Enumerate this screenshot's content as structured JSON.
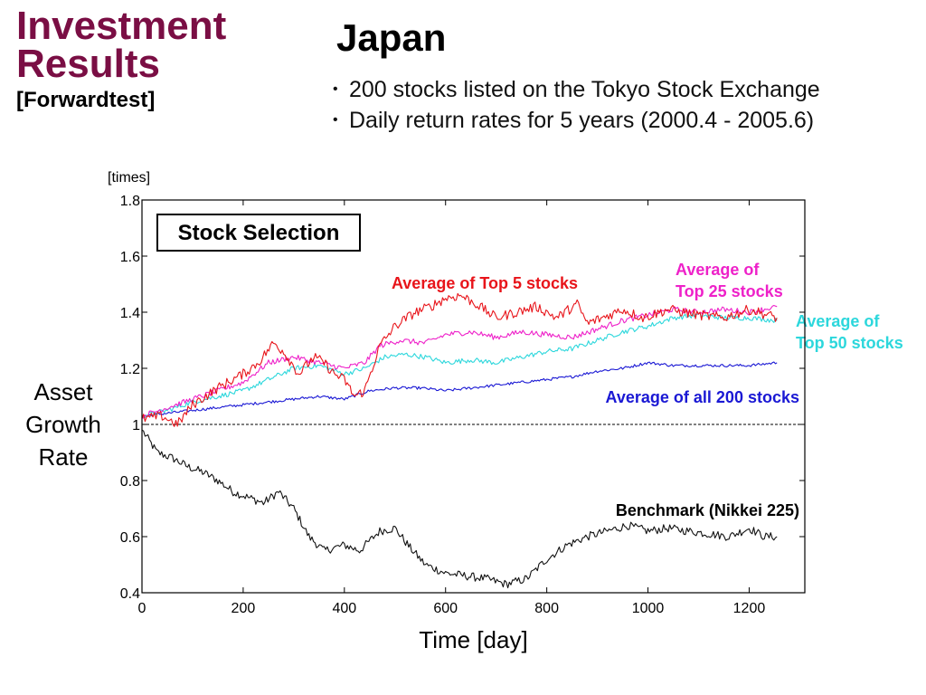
{
  "header": {
    "title_line1": "Investment",
    "title_line2": "Results",
    "subtitle": "[Forwardtest]",
    "heading": "Japan",
    "bullets": [
      "200 stocks listed on the Tokyo Stock Exchange",
      "Daily return rates for 5 years (2000.4 - 2005.6)"
    ]
  },
  "colors": {
    "title": "#7a0e44",
    "top5": "#e8141a",
    "top25": "#ee21c9",
    "top50": "#2cd7dc",
    "all200": "#1a18d4",
    "benchmark": "#111111"
  },
  "chart_data": {
    "type": "line",
    "box_label": "Stock Selection",
    "ylabel_lines": [
      "Asset",
      "Growth",
      "Rate"
    ],
    "y_unit": "[times]",
    "xlabel": "Time [day]",
    "xlim": [
      0,
      1310
    ],
    "ylim": [
      0.4,
      1.8
    ],
    "x_ticks": [
      0,
      200,
      400,
      600,
      800,
      1000,
      1200
    ],
    "y_ticks": [
      0.4,
      0.6,
      0.8,
      1,
      1.2,
      1.4,
      1.6,
      1.8
    ],
    "y_tick_labels": [
      "0.4",
      "0.6",
      "0.8",
      "1",
      "1.2",
      "1.4",
      "1.6",
      "1.8"
    ],
    "reference_line": 1.0,
    "grid": false,
    "series": [
      {
        "key": "top5",
        "name": "Average of Top 5 stocks",
        "label_lines": [
          "Average of Top 5 stocks"
        ],
        "points": [
          [
            0,
            1.02
          ],
          [
            40,
            1.03
          ],
          [
            70,
            1.0
          ],
          [
            100,
            1.07
          ],
          [
            150,
            1.13
          ],
          [
            200,
            1.18
          ],
          [
            230,
            1.22
          ],
          [
            260,
            1.29
          ],
          [
            280,
            1.26
          ],
          [
            310,
            1.18
          ],
          [
            340,
            1.24
          ],
          [
            360,
            1.22
          ],
          [
            380,
            1.18
          ],
          [
            400,
            1.16
          ],
          [
            420,
            1.1
          ],
          [
            440,
            1.12
          ],
          [
            470,
            1.28
          ],
          [
            500,
            1.35
          ],
          [
            540,
            1.4
          ],
          [
            570,
            1.42
          ],
          [
            600,
            1.45
          ],
          [
            630,
            1.46
          ],
          [
            660,
            1.43
          ],
          [
            700,
            1.38
          ],
          [
            740,
            1.4
          ],
          [
            780,
            1.42
          ],
          [
            820,
            1.38
          ],
          [
            860,
            1.43
          ],
          [
            880,
            1.36
          ],
          [
            910,
            1.38
          ],
          [
            950,
            1.41
          ],
          [
            990,
            1.38
          ],
          [
            1040,
            1.41
          ],
          [
            1100,
            1.39
          ],
          [
            1150,
            1.38
          ],
          [
            1200,
            1.41
          ],
          [
            1255,
            1.38
          ]
        ]
      },
      {
        "key": "top25",
        "name": "Average of Top 25 stocks",
        "label_lines": [
          "Average of",
          "Top 25 stocks"
        ],
        "points": [
          [
            0,
            1.03
          ],
          [
            50,
            1.06
          ],
          [
            100,
            1.09
          ],
          [
            150,
            1.12
          ],
          [
            200,
            1.15
          ],
          [
            250,
            1.22
          ],
          [
            300,
            1.24
          ],
          [
            350,
            1.22
          ],
          [
            400,
            1.2
          ],
          [
            440,
            1.22
          ],
          [
            470,
            1.28
          ],
          [
            510,
            1.3
          ],
          [
            560,
            1.29
          ],
          [
            600,
            1.32
          ],
          [
            650,
            1.33
          ],
          [
            700,
            1.31
          ],
          [
            750,
            1.33
          ],
          [
            800,
            1.32
          ],
          [
            850,
            1.31
          ],
          [
            900,
            1.34
          ],
          [
            950,
            1.37
          ],
          [
            1000,
            1.39
          ],
          [
            1050,
            1.41
          ],
          [
            1100,
            1.4
          ],
          [
            1150,
            1.41
          ],
          [
            1200,
            1.4
          ],
          [
            1255,
            1.42
          ]
        ]
      },
      {
        "key": "top50",
        "name": "Average of Top 50 stocks",
        "label_lines": [
          "Average of",
          "Top 50 stocks"
        ],
        "points": [
          [
            0,
            1.03
          ],
          [
            50,
            1.05
          ],
          [
            100,
            1.08
          ],
          [
            150,
            1.1
          ],
          [
            200,
            1.12
          ],
          [
            250,
            1.16
          ],
          [
            300,
            1.2
          ],
          [
            350,
            1.21
          ],
          [
            400,
            1.18
          ],
          [
            440,
            1.2
          ],
          [
            480,
            1.24
          ],
          [
            520,
            1.25
          ],
          [
            560,
            1.24
          ],
          [
            600,
            1.22
          ],
          [
            650,
            1.23
          ],
          [
            700,
            1.22
          ],
          [
            750,
            1.24
          ],
          [
            800,
            1.26
          ],
          [
            850,
            1.27
          ],
          [
            900,
            1.3
          ],
          [
            950,
            1.33
          ],
          [
            1000,
            1.35
          ],
          [
            1050,
            1.38
          ],
          [
            1100,
            1.39
          ],
          [
            1150,
            1.38
          ],
          [
            1200,
            1.38
          ],
          [
            1255,
            1.37
          ]
        ]
      },
      {
        "key": "all200",
        "name": "Average of all 200 stocks",
        "label_lines": [
          "Average of all 200 stocks"
        ],
        "points": [
          [
            0,
            1.03
          ],
          [
            50,
            1.04
          ],
          [
            100,
            1.05
          ],
          [
            150,
            1.06
          ],
          [
            200,
            1.07
          ],
          [
            250,
            1.08
          ],
          [
            300,
            1.09
          ],
          [
            350,
            1.1
          ],
          [
            400,
            1.09
          ],
          [
            450,
            1.12
          ],
          [
            500,
            1.13
          ],
          [
            550,
            1.13
          ],
          [
            600,
            1.12
          ],
          [
            650,
            1.13
          ],
          [
            700,
            1.14
          ],
          [
            750,
            1.15
          ],
          [
            800,
            1.16
          ],
          [
            850,
            1.17
          ],
          [
            900,
            1.19
          ],
          [
            950,
            1.2
          ],
          [
            1000,
            1.22
          ],
          [
            1050,
            1.21
          ],
          [
            1100,
            1.21
          ],
          [
            1150,
            1.21
          ],
          [
            1200,
            1.21
          ],
          [
            1255,
            1.22
          ]
        ]
      },
      {
        "key": "benchmark",
        "name": "Benchmark (Nikkei 225)",
        "label_lines": [
          "Benchmark (Nikkei 225)"
        ],
        "points": [
          [
            0,
            0.98
          ],
          [
            30,
            0.9
          ],
          [
            60,
            0.88
          ],
          [
            90,
            0.85
          ],
          [
            120,
            0.83
          ],
          [
            150,
            0.8
          ],
          [
            180,
            0.76
          ],
          [
            210,
            0.74
          ],
          [
            240,
            0.72
          ],
          [
            270,
            0.76
          ],
          [
            300,
            0.7
          ],
          [
            330,
            0.6
          ],
          [
            360,
            0.55
          ],
          [
            400,
            0.57
          ],
          [
            430,
            0.55
          ],
          [
            470,
            0.62
          ],
          [
            500,
            0.63
          ],
          [
            530,
            0.56
          ],
          [
            560,
            0.5
          ],
          [
            600,
            0.47
          ],
          [
            640,
            0.46
          ],
          [
            680,
            0.45
          ],
          [
            720,
            0.43
          ],
          [
            760,
            0.45
          ],
          [
            800,
            0.52
          ],
          [
            840,
            0.57
          ],
          [
            880,
            0.6
          ],
          [
            920,
            0.62
          ],
          [
            960,
            0.64
          ],
          [
            1000,
            0.62
          ],
          [
            1040,
            0.63
          ],
          [
            1080,
            0.62
          ],
          [
            1120,
            0.61
          ],
          [
            1160,
            0.6
          ],
          [
            1200,
            0.63
          ],
          [
            1230,
            0.6
          ],
          [
            1255,
            0.6
          ]
        ]
      }
    ]
  }
}
